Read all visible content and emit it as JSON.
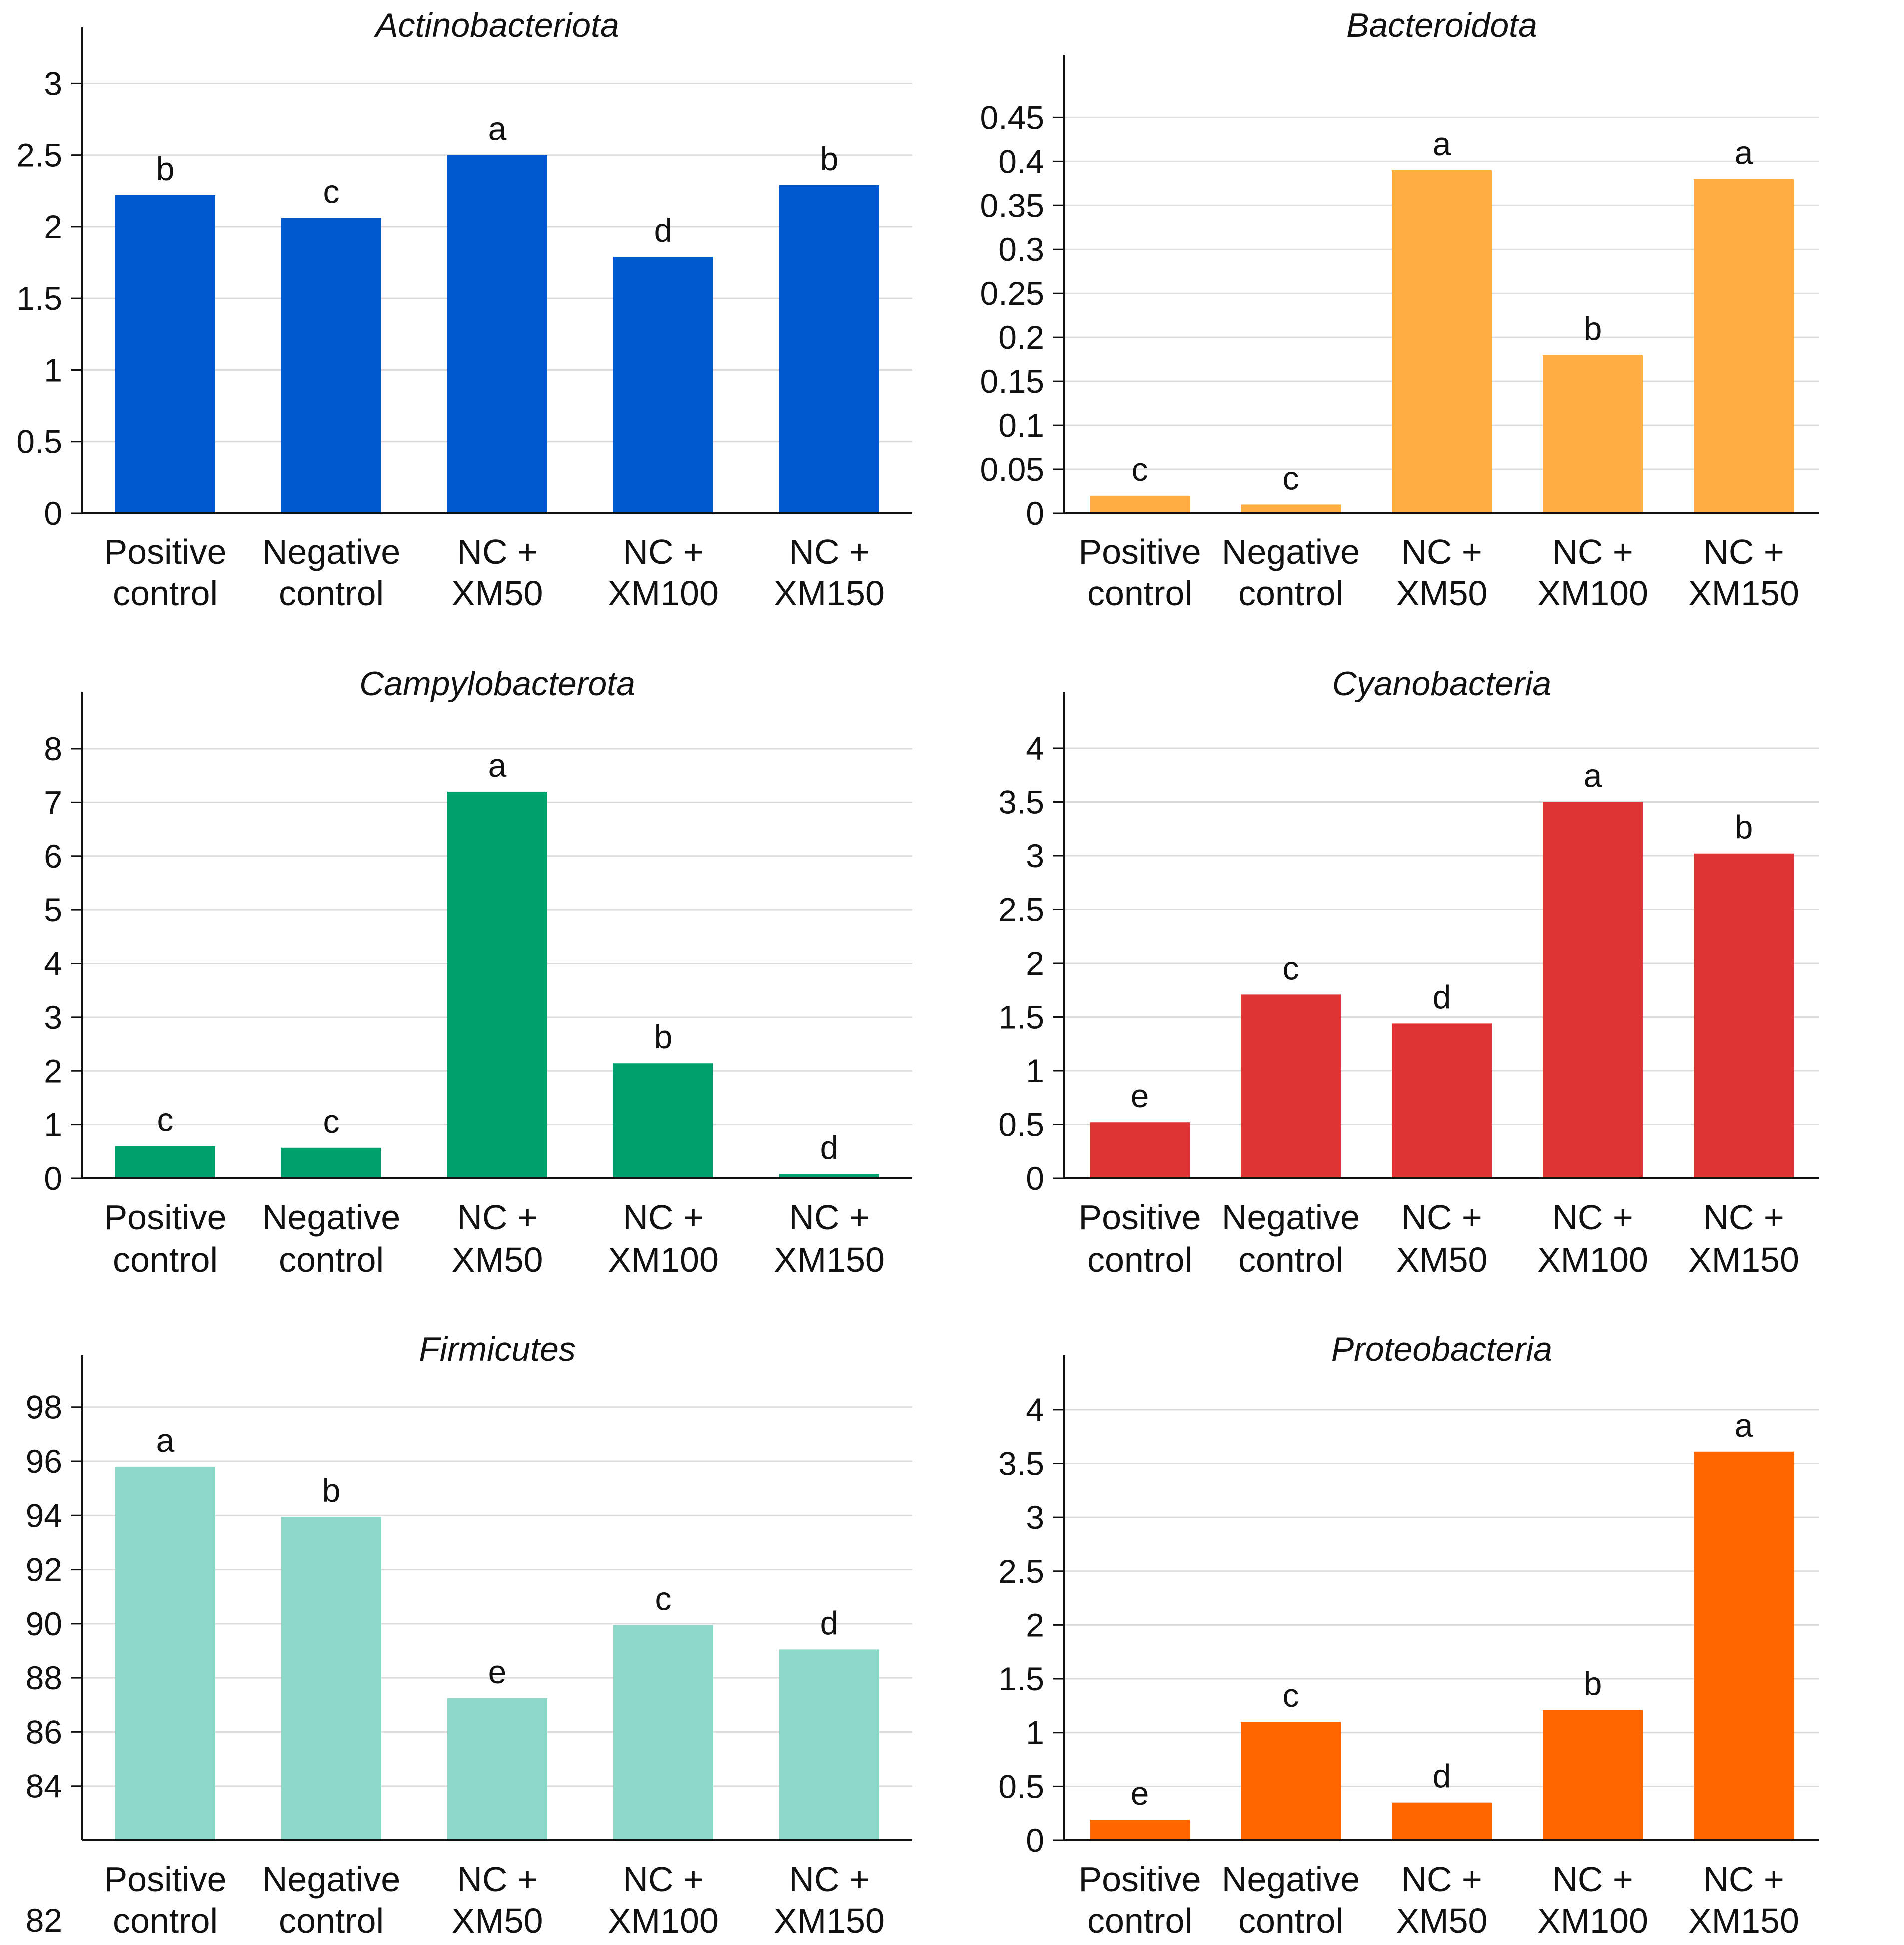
{
  "chart_data": [
    {
      "type": "bar",
      "title": "Actinobacteriota",
      "color": "#0057CE",
      "categories": [
        [
          "Positive",
          "control"
        ],
        [
          "Negative",
          "control"
        ],
        [
          "NC +",
          "XM50"
        ],
        [
          "NC +",
          "XM100"
        ],
        [
          "NC +",
          "XM150"
        ]
      ],
      "values": [
        2.22,
        2.06,
        2.5,
        1.79,
        2.29
      ],
      "letters": [
        "b",
        "c",
        "a",
        "d",
        "b"
      ],
      "ylim": [
        0,
        3.2
      ],
      "ticks": [
        "0",
        "0.5",
        "1",
        "1.5",
        "2",
        "2.5",
        "3"
      ],
      "grid": true,
      "xlabel": "",
      "ylabel": ""
    },
    {
      "type": "bar",
      "title": "Bacteroidota",
      "color": "#FFAE42",
      "categories": [
        [
          "Positive",
          "control"
        ],
        [
          "Negative",
          "control"
        ],
        [
          "NC +",
          "XM50"
        ],
        [
          "NC +",
          "XM100"
        ],
        [
          "NC +",
          "XM150"
        ]
      ],
      "values": [
        0.02,
        0.01,
        0.39,
        0.18,
        0.38
      ],
      "letters": [
        "c",
        "c",
        "a",
        "b",
        "a"
      ],
      "ylim": [
        0,
        0.49
      ],
      "ticks": [
        "0",
        "0.05",
        "0.1",
        "0.15",
        "0.2",
        "0.25",
        "0.3",
        "0.35",
        "0.4",
        "0.45"
      ],
      "grid": true,
      "xlabel": "",
      "ylabel": ""
    },
    {
      "type": "bar",
      "title": "Campylobacterota",
      "color": "#00A06E",
      "categories": [
        [
          "Positive",
          "control"
        ],
        [
          "Negative",
          "control"
        ],
        [
          "NC +",
          "XM50"
        ],
        [
          "NC +",
          "XM100"
        ],
        [
          "NC +",
          "XM150"
        ]
      ],
      "values": [
        0.6,
        0.57,
        7.2,
        2.14,
        0.08
      ],
      "letters": [
        "c",
        "c",
        "a",
        "b",
        "d"
      ],
      "ylim": [
        0,
        8.55
      ],
      "ticks": [
        "0",
        "1",
        "2",
        "3",
        "4",
        "5",
        "6",
        "7",
        "8"
      ],
      "grid": true,
      "xlabel": "",
      "ylabel": ""
    },
    {
      "type": "bar",
      "title": "Cyanobacteria",
      "color": "#E03434",
      "categories": [
        [
          "Positive",
          "control"
        ],
        [
          "Negative",
          "control"
        ],
        [
          "NC +",
          "XM50"
        ],
        [
          "NC +",
          "XM100"
        ],
        [
          "NC +",
          "XM150"
        ]
      ],
      "values": [
        0.52,
        1.71,
        1.44,
        3.5,
        3.02
      ],
      "letters": [
        "e",
        "c",
        "d",
        "a",
        "b"
      ],
      "ylim": [
        0,
        4.27
      ],
      "ticks": [
        "0",
        "0.5",
        "1",
        "1.5",
        "2",
        "2.5",
        "3",
        "3.5",
        "4"
      ],
      "grid": true,
      "xlabel": "",
      "ylabel": ""
    },
    {
      "type": "bar",
      "title": "Firmicutes",
      "color": "#8ED8CA",
      "categories": [
        [
          "Positive",
          "control"
        ],
        [
          "Negative",
          "control"
        ],
        [
          "NC +",
          "XM50"
        ],
        [
          "NC +",
          "XM100"
        ],
        [
          "NC +",
          "XM150"
        ]
      ],
      "values": [
        95.8,
        93.95,
        87.25,
        89.95,
        89.05
      ],
      "letters": [
        "a",
        "b",
        "e",
        "c",
        "d"
      ],
      "ylim": [
        82,
        98.9
      ],
      "ticks": [
        "84",
        "86",
        "88",
        "90",
        "92",
        "94",
        "96",
        "98"
      ],
      "base_label": "82",
      "grid": true,
      "xlabel": "",
      "ylabel": ""
    },
    {
      "type": "bar",
      "title": "Proteobacteria",
      "color": "#FF6600",
      "categories": [
        [
          "Positive",
          "control"
        ],
        [
          "Negative",
          "control"
        ],
        [
          "NC +",
          "XM50"
        ],
        [
          "NC +",
          "XM100"
        ],
        [
          "NC +",
          "XM150"
        ]
      ],
      "values": [
        0.19,
        1.1,
        0.35,
        1.21,
        3.61
      ],
      "letters": [
        "e",
        "c",
        "d",
        "b",
        "a"
      ],
      "ylim": [
        0,
        4.25
      ],
      "ticks": [
        "0",
        "0.5",
        "1",
        "1.5",
        "2",
        "2.5",
        "3",
        "3.5",
        "4"
      ],
      "grid": true,
      "xlabel": "",
      "ylabel": ""
    }
  ]
}
